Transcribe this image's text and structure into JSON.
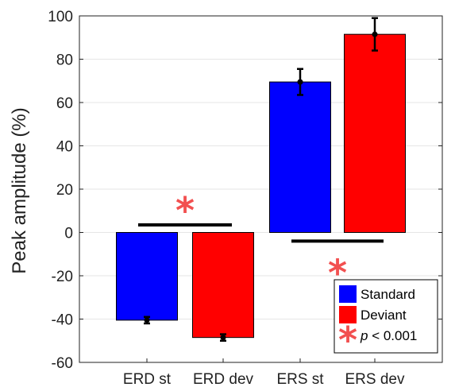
{
  "chart_data": {
    "type": "bar",
    "title": "",
    "xlabel": "",
    "ylabel": "Peak amplitude (%)",
    "ylim": [
      -60,
      100
    ],
    "yticks": [
      -60,
      -40,
      -20,
      0,
      20,
      40,
      60,
      80,
      100
    ],
    "grid": true,
    "categories": [
      "ERD st",
      "ERD dev",
      "ERS st",
      "ERS dev"
    ],
    "values": [
      -40.5,
      -48.5,
      69.5,
      91.5
    ],
    "errors": [
      1.5,
      1.5,
      6,
      7.5
    ],
    "bar_colors": [
      "#0000ff",
      "#ff0000",
      "#0000ff",
      "#ff0000"
    ],
    "significance": [
      {
        "from": 0,
        "to": 1,
        "y": 3.5,
        "label_pos": "above"
      },
      {
        "from": 2,
        "to": 3,
        "y": -4,
        "label_pos": "below"
      }
    ],
    "legend": {
      "placement": "bottom-right",
      "entries": [
        {
          "label": "Standard",
          "color": "#0000ff",
          "marker": "square"
        },
        {
          "label": "Deviant",
          "color": "#ff0000",
          "marker": "square"
        },
        {
          "label_italic": "p",
          "label": " < 0.001",
          "color": "#f25050",
          "marker": "star"
        }
      ]
    }
  },
  "colors": {
    "star": "#f25050",
    "axis": "#222222",
    "grid": "#e6e6e6"
  }
}
